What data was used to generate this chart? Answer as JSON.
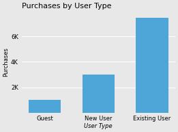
{
  "categories": [
    "Guest",
    "New User",
    "Existing User"
  ],
  "values": [
    1000,
    3000,
    7500
  ],
  "bar_color": "#4da6d7",
  "title": "Purchases by User Type",
  "xlabel": "User Type",
  "ylabel": "Purchases",
  "ylim": [
    0,
    8000
  ],
  "yticks": [
    2000,
    4000,
    6000
  ],
  "ytick_labels": [
    "2K",
    "4K",
    "6K"
  ],
  "title_fontsize": 8,
  "label_fontsize": 6,
  "tick_fontsize": 6,
  "background_color": "#e8e8e8"
}
